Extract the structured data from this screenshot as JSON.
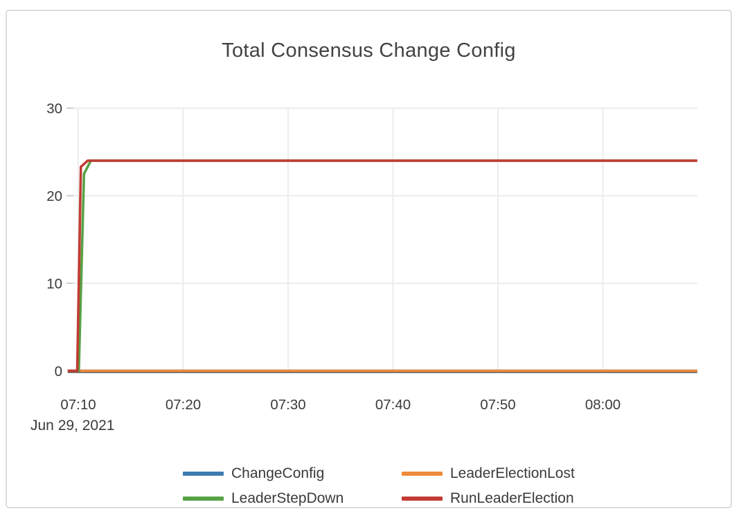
{
  "chart_data": {
    "type": "line",
    "title": "Total Consensus Change Config",
    "x_axis": {
      "tick_labels": [
        "07:10",
        "07:20",
        "07:30",
        "07:40",
        "07:50",
        "08:00"
      ],
      "tick_minutes": [
        430,
        440,
        450,
        460,
        470,
        480
      ],
      "date_label": "Jun 29, 2021",
      "range_minutes": [
        429,
        489
      ]
    },
    "y_axis": {
      "tick_labels": [
        "0",
        "10",
        "20",
        "30"
      ],
      "tick_values": [
        0,
        10,
        20,
        30
      ],
      "ylim": [
        0,
        30
      ]
    },
    "grid": true,
    "legend_position": "bottom",
    "plateau_value": 24,
    "series": [
      {
        "name": "ChangeConfig",
        "color": "#3e7cb0",
        "points": [
          [
            429,
            0
          ],
          [
            489,
            0
          ]
        ]
      },
      {
        "name": "LeaderElectionLost",
        "color": "#ee8b3c",
        "points": [
          [
            429,
            0
          ],
          [
            489,
            0
          ]
        ]
      },
      {
        "name": "LeaderStepDown",
        "color": "#56a245",
        "points": [
          [
            429,
            0
          ],
          [
            430.05,
            0
          ],
          [
            430.55,
            22.5
          ],
          [
            431.2,
            24
          ],
          [
            489,
            24
          ]
        ]
      },
      {
        "name": "RunLeaderElection",
        "color": "#c23b33",
        "points": [
          [
            429,
            0
          ],
          [
            429.9,
            0
          ],
          [
            430.25,
            23.3
          ],
          [
            430.9,
            24
          ],
          [
            489,
            24
          ]
        ]
      }
    ],
    "colors": {
      "grid_line": "#ececec",
      "axis_line": "#3d3d3d",
      "tick_text": "#3b3b3b",
      "title_text": "#424242"
    }
  }
}
